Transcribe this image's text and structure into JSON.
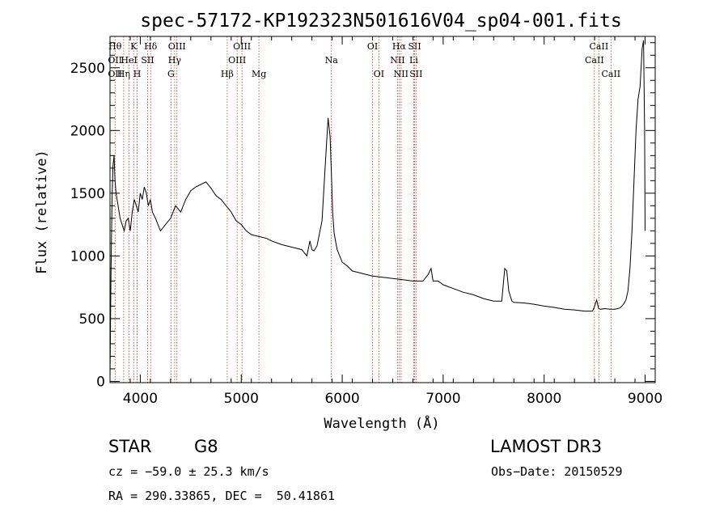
{
  "chart_data": {
    "type": "line",
    "title": "spec-57172-KP192323N501616V04_sp04-001.fits",
    "xlabel": "Wavelength (Å)",
    "ylabel": "Flux (relative)",
    "xlim": [
      3700,
      9100
    ],
    "ylim": [
      -10,
      2750
    ],
    "xticks": [
      4000,
      5000,
      6000,
      7000,
      8000,
      9000
    ],
    "xtick_labels": [
      "4000",
      "5000",
      "6000",
      "7000",
      "8000",
      "9000"
    ],
    "yticks": [
      0,
      500,
      1000,
      1500,
      2000,
      2500
    ],
    "ytick_labels": [
      "0",
      "500",
      "1000",
      "1500",
      "2000",
      "2500"
    ],
    "series": [
      {
        "name": "spectrum",
        "x": [
          3700,
          3710,
          3720,
          3730,
          3740,
          3750,
          3760,
          3780,
          3800,
          3820,
          3840,
          3860,
          3880,
          3900,
          3920,
          3940,
          3960,
          3980,
          4000,
          4020,
          4040,
          4060,
          4080,
          4100,
          4120,
          4150,
          4200,
          4250,
          4300,
          4350,
          4400,
          4450,
          4500,
          4550,
          4600,
          4650,
          4700,
          4750,
          4800,
          4850,
          4900,
          4950,
          5000,
          5050,
          5100,
          5150,
          5200,
          5250,
          5300,
          5400,
          5500,
          5600,
          5650,
          5680,
          5700,
          5720,
          5750,
          5800,
          5830,
          5860,
          5880,
          5895,
          5905,
          5920,
          5950,
          6000,
          6050,
          6100,
          6150,
          6200,
          6300,
          6400,
          6500,
          6600,
          6700,
          6800,
          6850,
          6880,
          6900,
          6950,
          7000,
          7100,
          7200,
          7300,
          7400,
          7500,
          7580,
          7610,
          7630,
          7650,
          7680,
          7700,
          7800,
          7900,
          8000,
          8100,
          8200,
          8300,
          8400,
          8480,
          8500,
          8520,
          8540,
          8560,
          8600,
          8650,
          8700,
          8730,
          8750,
          8770,
          8790,
          8810,
          8830,
          8850,
          8870,
          8890,
          8910,
          8930,
          8950,
          8970,
          8985,
          8995,
          9000
        ],
        "y": [
          30,
          850,
          1450,
          1720,
          1800,
          1600,
          1500,
          1400,
          1300,
          1250,
          1200,
          1280,
          1300,
          1200,
          1350,
          1450,
          1400,
          1350,
          1500,
          1450,
          1550,
          1500,
          1400,
          1450,
          1350,
          1300,
          1200,
          1250,
          1300,
          1400,
          1350,
          1450,
          1520,
          1550,
          1570,
          1590,
          1540,
          1480,
          1450,
          1400,
          1350,
          1280,
          1250,
          1200,
          1170,
          1160,
          1150,
          1140,
          1120,
          1090,
          1070,
          1050,
          1000,
          1120,
          1050,
          1040,
          1080,
          1280,
          1700,
          2100,
          1950,
          1600,
          1350,
          1180,
          1050,
          950,
          920,
          880,
          870,
          860,
          840,
          830,
          820,
          810,
          800,
          800,
          850,
          900,
          800,
          800,
          770,
          740,
          710,
          690,
          660,
          640,
          640,
          900,
          880,
          720,
          640,
          630,
          625,
          615,
          600,
          590,
          575,
          570,
          560,
          560,
          600,
          650,
          580,
          575,
          580,
          575,
          575,
          580,
          585,
          600,
          620,
          650,
          720,
          900,
          1200,
          1600,
          2000,
          2250,
          2350,
          2650,
          2720,
          2000,
          1200
        ]
      }
    ],
    "line_markers": [
      {
        "wavelength": 3750,
        "labels": [
          {
            "text": "Hθ",
            "row": 1
          },
          {
            "text": "OII",
            "row": 2
          },
          {
            "text": "OII",
            "row": 3
          }
        ]
      },
      {
        "wavelength": 3835,
        "labels": [
          {
            "text": "Hη",
            "row": 3
          }
        ]
      },
      {
        "wavelength": 3889,
        "labels": [
          {
            "text": "HeI",
            "row": 2
          }
        ]
      },
      {
        "wavelength": 3934,
        "labels": [
          {
            "text": "K",
            "row": 1
          }
        ]
      },
      {
        "wavelength": 3969,
        "labels": [
          {
            "text": "H",
            "row": 3
          }
        ]
      },
      {
        "wavelength": 4072,
        "labels": [
          {
            "text": "SII",
            "row": 2
          }
        ]
      },
      {
        "wavelength": 4102,
        "labels": [
          {
            "text": "Hδ",
            "row": 1
          }
        ]
      },
      {
        "wavelength": 4304,
        "labels": [
          {
            "text": "G",
            "row": 3
          }
        ]
      },
      {
        "wavelength": 4340,
        "labels": [
          {
            "text": "Hγ",
            "row": 2
          }
        ]
      },
      {
        "wavelength": 4363,
        "labels": [
          {
            "text": "OIII",
            "row": 1
          }
        ]
      },
      {
        "wavelength": 4861,
        "labels": [
          {
            "text": "Hβ",
            "row": 3
          }
        ]
      },
      {
        "wavelength": 4959,
        "labels": [
          {
            "text": "OIII",
            "row": 2
          }
        ]
      },
      {
        "wavelength": 5007,
        "labels": [
          {
            "text": "OIII",
            "row": 1
          }
        ]
      },
      {
        "wavelength": 5175,
        "labels": [
          {
            "text": "Mg",
            "row": 3
          }
        ]
      },
      {
        "wavelength": 5893,
        "labels": [
          {
            "text": "Na",
            "row": 2
          }
        ]
      },
      {
        "wavelength": 6300,
        "labels": [
          {
            "text": "OI",
            "row": 1
          }
        ]
      },
      {
        "wavelength": 6363,
        "labels": [
          {
            "text": "OI",
            "row": 3
          }
        ]
      },
      {
        "wavelength": 6548,
        "labels": [
          {
            "text": "NII",
            "row": 2
          }
        ]
      },
      {
        "wavelength": 6563,
        "labels": [
          {
            "text": "Hα",
            "row": 1
          }
        ]
      },
      {
        "wavelength": 6583,
        "labels": [
          {
            "text": "NII",
            "row": 3
          }
        ]
      },
      {
        "wavelength": 6708,
        "labels": [
          {
            "text": "Li",
            "row": 2
          }
        ]
      },
      {
        "wavelength": 6717,
        "labels": [
          {
            "text": "SII",
            "row": 1
          }
        ]
      },
      {
        "wavelength": 6731,
        "labels": [
          {
            "text": "SII",
            "row": 3
          }
        ]
      },
      {
        "wavelength": 8498,
        "labels": [
          {
            "text": "CaII",
            "row": 2
          }
        ]
      },
      {
        "wavelength": 8542,
        "labels": [
          {
            "text": "CaII",
            "row": 1
          }
        ]
      },
      {
        "wavelength": 8662,
        "labels": [
          {
            "text": "CaII",
            "row": 3
          }
        ]
      }
    ]
  },
  "info": {
    "class": "STAR",
    "subclass": "G8",
    "survey": "LAMOST DR3",
    "cz": "cz = −59.0 ± 25.3 km/s",
    "obs_date": "Obs−Date: 20150529",
    "coords": "RA = 290.33865, DEC =  50.41861"
  }
}
